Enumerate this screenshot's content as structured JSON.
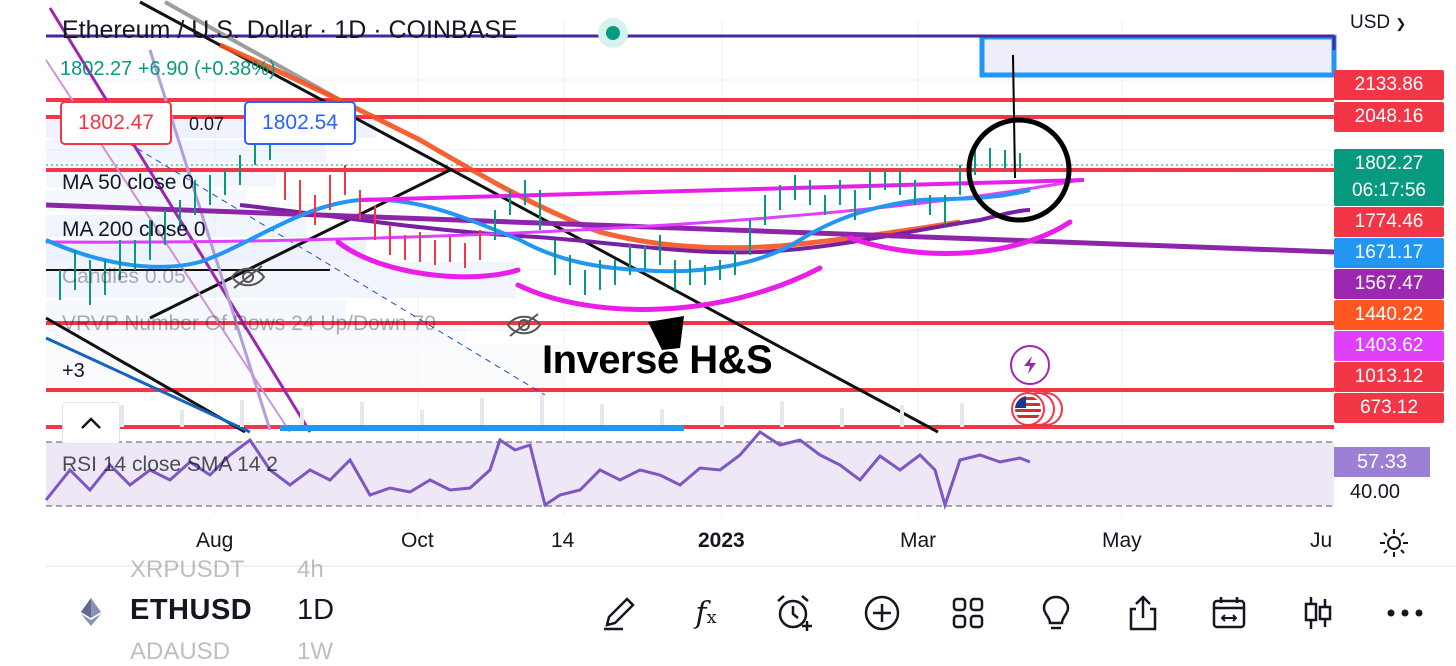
{
  "header": {
    "title": "Ethereum / U.S. Dollar · 1D · COINBASE",
    "last_price": "1802.27",
    "change": "+6.90",
    "change_pct": "(+0.38%)",
    "bid": "1802.47",
    "spread": "0.07",
    "ask": "1802.54",
    "currency": "USD"
  },
  "legend": {
    "ma50": "MA 50 close 0",
    "ma200": "MA 200 close 0",
    "candles": "Candles 0.05",
    "vrvp": "VRVP Number Of Rows 24 Up/Down 70",
    "more": "+3",
    "rsi": "RSI 14 close SMA 14 2"
  },
  "price_scale": {
    "labels": [
      {
        "text": "2133.86",
        "color": "#f23645"
      },
      {
        "text": "2048.16",
        "color": "#f23645"
      },
      {
        "text": "1802.27",
        "color": "#089981"
      },
      {
        "text": "06:17:56",
        "color": "#089981"
      },
      {
        "text": "1774.46",
        "color": "#f23645"
      },
      {
        "text": "1671.17",
        "color": "#2196f3"
      },
      {
        "text": "1567.47",
        "color": "#9c27b0"
      },
      {
        "text": "1440.22",
        "color": "#ff5722"
      },
      {
        "text": "1403.62",
        "color": "#e040fb"
      },
      {
        "text": "1013.12",
        "color": "#f23645"
      },
      {
        "text": "673.12",
        "color": "#f23645"
      }
    ],
    "rsi_value": "57.33",
    "rsi_level": "40.00"
  },
  "annotation": "Inverse H&S",
  "x_axis": [
    {
      "label": "Aug",
      "bold": false
    },
    {
      "label": "Oct",
      "bold": false
    },
    {
      "label": "14",
      "bold": false
    },
    {
      "label": "2023",
      "bold": true
    },
    {
      "label": "Mar",
      "bold": false
    },
    {
      "label": "May",
      "bold": false
    },
    {
      "label": "Ju",
      "bold": false
    }
  ],
  "bottom_bar": {
    "symbol": "ETHUSD",
    "interval": "1D",
    "ghost_above_symbol": "XRPUSDT",
    "ghost_above_interval": "4h",
    "ghost_below_symbol": "ADAUSD",
    "ghost_below_interval": "1W",
    "tools": [
      "pen-icon",
      "fx-icon",
      "alarm-clock-icon",
      "plus-circle-icon",
      "grid-icon",
      "lightbulb-icon",
      "share-icon",
      "calendar-replay-icon",
      "candles-icon",
      "more-icon"
    ]
  },
  "colors": {
    "up": "#089981",
    "down": "#f23645",
    "accent_blue": "#2962ff",
    "magenta": "#e91ee9",
    "purple": "#7b1fa2",
    "rsi_line": "#7e57c2",
    "rsi_band": "#ede7f6"
  }
}
